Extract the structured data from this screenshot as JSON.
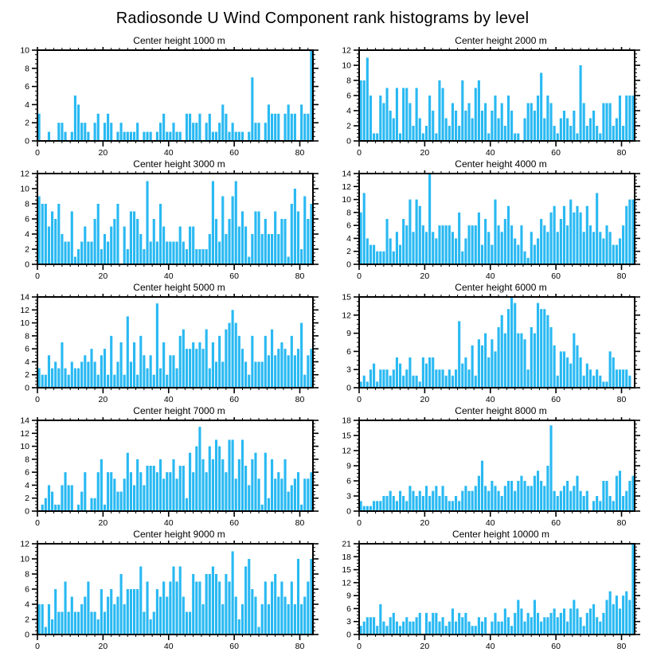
{
  "page_title": "Radiosonde U Wind Component rank histograms by level",
  "style": {
    "bar_color": "#29B9F2",
    "axis_color": "#000000",
    "background": "#FFFFFF",
    "text_color": "#000000"
  },
  "chart_data": [
    {
      "type": "bar",
      "title": "Center height 1000 m",
      "xlabel": "",
      "ylabel": "",
      "xlim": [
        0,
        84
      ],
      "ylim": [
        0,
        10
      ],
      "xticks": [
        0,
        20,
        40,
        60,
        80
      ],
      "yticks": [
        0,
        2,
        4,
        6,
        8,
        10
      ],
      "x_minor_step": 2.5,
      "y_minor_step": 0.5,
      "grid": false,
      "legend": "none",
      "values": [
        3,
        0,
        0,
        1,
        0,
        0,
        2,
        2,
        1,
        0,
        1,
        5,
        4,
        2,
        2,
        1,
        0,
        2,
        3,
        0,
        2,
        3,
        2,
        0,
        1,
        2,
        1,
        1,
        1,
        1,
        2,
        0,
        1,
        1,
        1,
        0,
        1,
        2,
        3,
        1,
        1,
        2,
        1,
        1,
        0,
        3,
        3,
        2,
        2,
        3,
        0,
        2,
        3,
        1,
        1,
        2,
        4,
        3,
        1,
        2,
        1,
        1,
        1,
        0,
        1,
        7,
        2,
        2,
        0,
        2,
        4,
        3,
        3,
        3,
        0,
        3,
        4,
        3,
        3,
        0,
        4,
        3,
        3,
        10
      ]
    },
    {
      "type": "bar",
      "title": "Center height 2000 m",
      "xlabel": "",
      "ylabel": "",
      "xlim": [
        0,
        84
      ],
      "ylim": [
        0,
        12
      ],
      "xticks": [
        0,
        20,
        40,
        60,
        80
      ],
      "yticks": [
        0,
        2,
        4,
        6,
        8,
        10,
        12
      ],
      "x_minor_step": 2.5,
      "y_minor_step": 0.5,
      "grid": false,
      "legend": "none",
      "values": [
        8,
        8,
        11,
        6,
        1,
        1,
        6,
        5,
        7,
        4,
        3,
        7,
        1,
        7,
        7,
        5,
        2,
        7,
        3,
        1,
        2,
        6,
        4,
        1,
        8,
        7,
        3,
        2,
        5,
        4,
        2,
        8,
        4,
        5,
        3,
        7,
        8,
        4,
        5,
        1,
        4,
        6,
        3,
        5,
        2,
        6,
        4,
        1,
        1,
        0,
        3,
        5,
        5,
        4,
        6,
        9,
        3,
        6,
        5,
        2,
        1,
        3,
        4,
        3,
        2,
        4,
        1,
        10,
        5,
        2,
        3,
        4,
        2,
        1,
        5,
        5,
        5,
        2,
        3,
        6,
        2,
        6,
        6,
        6
      ]
    },
    {
      "type": "bar",
      "title": "Center height 3000 m",
      "xlabel": "",
      "ylabel": "",
      "xlim": [
        0,
        84
      ],
      "ylim": [
        0,
        12
      ],
      "xticks": [
        0,
        20,
        40,
        60,
        80
      ],
      "yticks": [
        0,
        2,
        4,
        6,
        8,
        10,
        12
      ],
      "x_minor_step": 2.5,
      "y_minor_step": 0.5,
      "grid": false,
      "legend": "none",
      "values": [
        9,
        8,
        8,
        5,
        7,
        6,
        8,
        4,
        3,
        3,
        7,
        1,
        2,
        3,
        5,
        3,
        3,
        6,
        8,
        2,
        4,
        3,
        5,
        6,
        8,
        0,
        5,
        2,
        7,
        7,
        6,
        4,
        2,
        11,
        3,
        6,
        3,
        8,
        5,
        3,
        3,
        3,
        3,
        5,
        3,
        2,
        5,
        5,
        2,
        2,
        2,
        2,
        4,
        11,
        6,
        3,
        9,
        4,
        6,
        9,
        11,
        5,
        7,
        5,
        1,
        4,
        7,
        7,
        4,
        6,
        4,
        4,
        7,
        4,
        6,
        6,
        1,
        8,
        10,
        7,
        2,
        9,
        6,
        8
      ]
    },
    {
      "type": "bar",
      "title": "Center height 4000 m",
      "xlabel": "",
      "ylabel": "",
      "xlim": [
        0,
        84
      ],
      "ylim": [
        0,
        14
      ],
      "xticks": [
        0,
        20,
        40,
        60,
        80
      ],
      "yticks": [
        0,
        2,
        4,
        6,
        8,
        10,
        12,
        14
      ],
      "x_minor_step": 2.5,
      "y_minor_step": 0.5,
      "grid": false,
      "legend": "none",
      "values": [
        8,
        11,
        4,
        3,
        3,
        2,
        2,
        2,
        7,
        4,
        2,
        5,
        3,
        7,
        6,
        10,
        5,
        10,
        9,
        6,
        5,
        14,
        5,
        4,
        6,
        6,
        6,
        6,
        5,
        4,
        8,
        2,
        4,
        6,
        6,
        6,
        8,
        3,
        7,
        5,
        3,
        10,
        6,
        5,
        7,
        9,
        6,
        4,
        3,
        6,
        2,
        1,
        5,
        3,
        4,
        7,
        6,
        5,
        8,
        9,
        5,
        7,
        9,
        6,
        10,
        8,
        9,
        8,
        5,
        9,
        6,
        5,
        11,
        5,
        4,
        6,
        5,
        3,
        3,
        4,
        6,
        9,
        10,
        10
      ]
    },
    {
      "type": "bar",
      "title": "Center height 5000 m",
      "xlabel": "",
      "ylabel": "",
      "xlim": [
        0,
        84
      ],
      "ylim": [
        0,
        14
      ],
      "xticks": [
        0,
        20,
        40,
        60,
        80
      ],
      "yticks": [
        0,
        2,
        4,
        6,
        8,
        10,
        12,
        14
      ],
      "x_minor_step": 2.5,
      "y_minor_step": 0.5,
      "grid": false,
      "legend": "none",
      "values": [
        3,
        2,
        2,
        5,
        3,
        4,
        3,
        7,
        3,
        2,
        4,
        3,
        3,
        4,
        5,
        4,
        6,
        4,
        2,
        5,
        6,
        2,
        8,
        2,
        4,
        7,
        2,
        11,
        4,
        7,
        2,
        8,
        5,
        3,
        5,
        2,
        13,
        3,
        7,
        2,
        5,
        5,
        3,
        8,
        9,
        6,
        6,
        7,
        6,
        7,
        6,
        9,
        3,
        7,
        4,
        8,
        4,
        9,
        10,
        12,
        10,
        8,
        6,
        4,
        2,
        8,
        4,
        4,
        4,
        8,
        5,
        9,
        5,
        6,
        7,
        6,
        5,
        8,
        5,
        6,
        10,
        2,
        5,
        6
      ]
    },
    {
      "type": "bar",
      "title": "Center height 6000 m",
      "xlabel": "",
      "ylabel": "",
      "xlim": [
        0,
        84
      ],
      "ylim": [
        0,
        15
      ],
      "xticks": [
        0,
        20,
        40,
        60,
        80
      ],
      "yticks": [
        0,
        3,
        6,
        9,
        12,
        15
      ],
      "x_minor_step": 2.5,
      "y_minor_step": 0.75,
      "grid": false,
      "legend": "none",
      "values": [
        1,
        2,
        1,
        3,
        4,
        1,
        3,
        3,
        3,
        2,
        3,
        5,
        4,
        2,
        3,
        5,
        2,
        2,
        1,
        5,
        4,
        5,
        5,
        3,
        3,
        3,
        2,
        3,
        2,
        3,
        11,
        4,
        5,
        3,
        7,
        2,
        8,
        7,
        9,
        5,
        8,
        6,
        10,
        12,
        9,
        13,
        15,
        14,
        9,
        9,
        8,
        3,
        10,
        9,
        14,
        13,
        13,
        12,
        10,
        7,
        2,
        6,
        6,
        5,
        4,
        9,
        7,
        5,
        2,
        4,
        3,
        2,
        3,
        2,
        1,
        1,
        6,
        5,
        3,
        3,
        3,
        3,
        2,
        0
      ]
    },
    {
      "type": "bar",
      "title": "Center height 7000 m",
      "xlabel": "",
      "ylabel": "",
      "xlim": [
        0,
        84
      ],
      "ylim": [
        0,
        14
      ],
      "xticks": [
        0,
        20,
        40,
        60,
        80
      ],
      "yticks": [
        0,
        2,
        4,
        6,
        8,
        10,
        12,
        14
      ],
      "x_minor_step": 2.5,
      "y_minor_step": 0.5,
      "grid": false,
      "legend": "none",
      "values": [
        0,
        1,
        2,
        4,
        3,
        1,
        1,
        4,
        6,
        4,
        4,
        0,
        1,
        3,
        6,
        0,
        2,
        2,
        6,
        8,
        1,
        6,
        6,
        5,
        3,
        3,
        5,
        9,
        6,
        4,
        8,
        6,
        4,
        7,
        7,
        7,
        6,
        8,
        5,
        6,
        6,
        8,
        5,
        7,
        7,
        2,
        9,
        6,
        10,
        13,
        8,
        6,
        10,
        8,
        11,
        10,
        8,
        6,
        11,
        11,
        5,
        8,
        11,
        7,
        4,
        8,
        9,
        5,
        1,
        9,
        2,
        8,
        5,
        6,
        5,
        8,
        3,
        4,
        5,
        6,
        1,
        5,
        5,
        6
      ]
    },
    {
      "type": "bar",
      "title": "Center height 8000 m",
      "xlabel": "",
      "ylabel": "",
      "xlim": [
        0,
        84
      ],
      "ylim": [
        0,
        18
      ],
      "xticks": [
        0,
        20,
        40,
        60,
        80
      ],
      "yticks": [
        0,
        3,
        6,
        9,
        12,
        15,
        18
      ],
      "x_minor_step": 2.5,
      "y_minor_step": 0.75,
      "grid": false,
      "legend": "none",
      "values": [
        2,
        1,
        1,
        1,
        2,
        2,
        2,
        3,
        3,
        4,
        3,
        2,
        4,
        3,
        2,
        5,
        4,
        3,
        4,
        3,
        5,
        3,
        4,
        5,
        3,
        5,
        3,
        2,
        2,
        3,
        2,
        4,
        5,
        4,
        4,
        5,
        7,
        10,
        5,
        4,
        6,
        5,
        4,
        3,
        5,
        6,
        6,
        4,
        6,
        7,
        6,
        5,
        5,
        7,
        8,
        6,
        5,
        9,
        17,
        4,
        3,
        4,
        5,
        6,
        4,
        5,
        7,
        4,
        3,
        4,
        0,
        2,
        3,
        2,
        6,
        6,
        3,
        2,
        7,
        8,
        3,
        4,
        6,
        7
      ]
    },
    {
      "type": "bar",
      "title": "Center height 9000 m",
      "xlabel": "",
      "ylabel": "",
      "xlim": [
        0,
        84
      ],
      "ylim": [
        0,
        12
      ],
      "xticks": [
        0,
        20,
        40,
        60,
        80
      ],
      "yticks": [
        0,
        2,
        4,
        6,
        8,
        10,
        12
      ],
      "x_minor_step": 2.5,
      "y_minor_step": 0.5,
      "grid": false,
      "legend": "none",
      "values": [
        4,
        4,
        1,
        4,
        2,
        6,
        3,
        3,
        7,
        3,
        5,
        3,
        3,
        4,
        5,
        7,
        3,
        3,
        2,
        6,
        3,
        5,
        6,
        4,
        5,
        8,
        4,
        6,
        6,
        6,
        6,
        9,
        3,
        7,
        2,
        3,
        6,
        5,
        7,
        5,
        7,
        9,
        7,
        9,
        5,
        3,
        3,
        8,
        7,
        7,
        4,
        8,
        8,
        9,
        8,
        7,
        4,
        8,
        7,
        11,
        5,
        2,
        4,
        9,
        10,
        6,
        5,
        1,
        4,
        7,
        4,
        7,
        8,
        5,
        7,
        5,
        4,
        7,
        4,
        10,
        4,
        5,
        7,
        10
      ]
    },
    {
      "type": "bar",
      "title": "Center height 10000 m",
      "xlabel": "",
      "ylabel": "",
      "xlim": [
        0,
        84
      ],
      "ylim": [
        0,
        21
      ],
      "xticks": [
        0,
        20,
        40,
        60,
        80
      ],
      "yticks": [
        0,
        3,
        6,
        9,
        12,
        15,
        18,
        21
      ],
      "x_minor_step": 2.5,
      "y_minor_step": 0.75,
      "grid": false,
      "legend": "none",
      "values": [
        2,
        3,
        4,
        4,
        4,
        2,
        7,
        3,
        2,
        4,
        5,
        3,
        2,
        3,
        4,
        3,
        3,
        4,
        5,
        0,
        5,
        3,
        5,
        5,
        3,
        4,
        2,
        3,
        6,
        3,
        5,
        4,
        5,
        3,
        2,
        2,
        4,
        3,
        4,
        0,
        3,
        5,
        3,
        3,
        6,
        4,
        2,
        5,
        8,
        6,
        3,
        5,
        4,
        8,
        5,
        3,
        4,
        4,
        5,
        6,
        4,
        5,
        6,
        3,
        6,
        8,
        6,
        4,
        2,
        5,
        6,
        7,
        4,
        3,
        5,
        8,
        10,
        7,
        9,
        6,
        9,
        10,
        8,
        21
      ]
    }
  ]
}
